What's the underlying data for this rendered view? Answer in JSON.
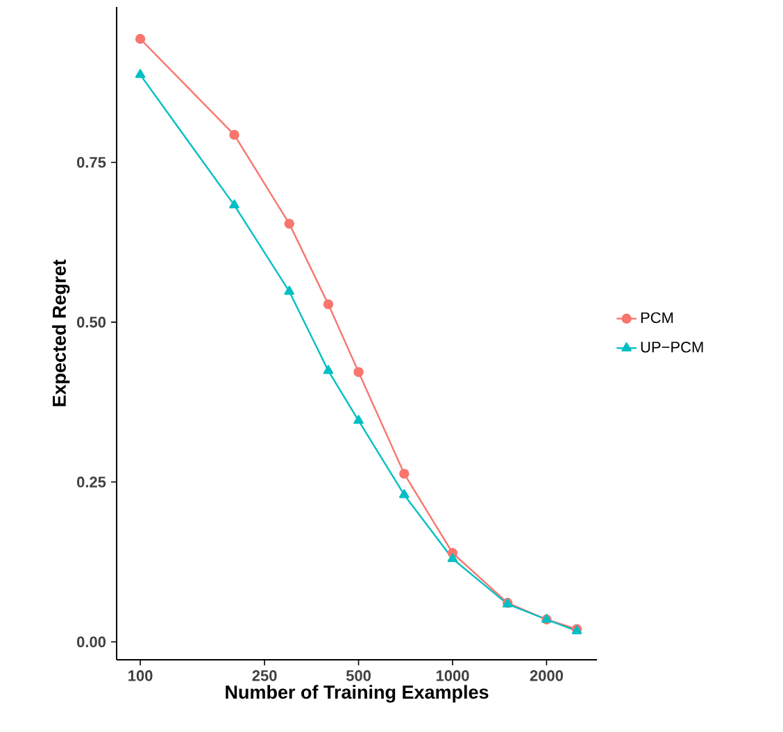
{
  "chart_data": {
    "type": "line",
    "xlabel": "Number of Training Examples",
    "ylabel": "Expected Regret",
    "log": "x",
    "grid": false,
    "legend": "right",
    "x": [
      100,
      200,
      300,
      400,
      500,
      700,
      1000,
      1500,
      2000,
      2500
    ],
    "xlim": [
      84,
      2900
    ],
    "xticks": [
      100,
      250,
      500,
      1000,
      2000
    ],
    "ylim": [
      -0.028,
      0.993
    ],
    "yticks": [
      {
        "value": 0,
        "label": "0.00"
      },
      {
        "value": 0.25,
        "label": "0.25"
      },
      {
        "value": 0.5,
        "label": "0.50"
      },
      {
        "value": 0.75,
        "label": "0.75"
      }
    ],
    "series": [
      {
        "name": "PCM",
        "color": "#f8766d",
        "marker": "circle",
        "values": [
          0.943,
          0.793,
          0.654,
          0.528,
          0.422,
          0.263,
          0.139,
          0.061,
          0.035,
          0.02
        ]
      },
      {
        "name": "UP−PCM",
        "color": "#00bfc4",
        "marker": "triangle",
        "values": [
          0.887,
          0.683,
          0.548,
          0.424,
          0.346,
          0.23,
          0.13,
          0.059,
          0.035,
          0.017
        ]
      }
    ]
  }
}
